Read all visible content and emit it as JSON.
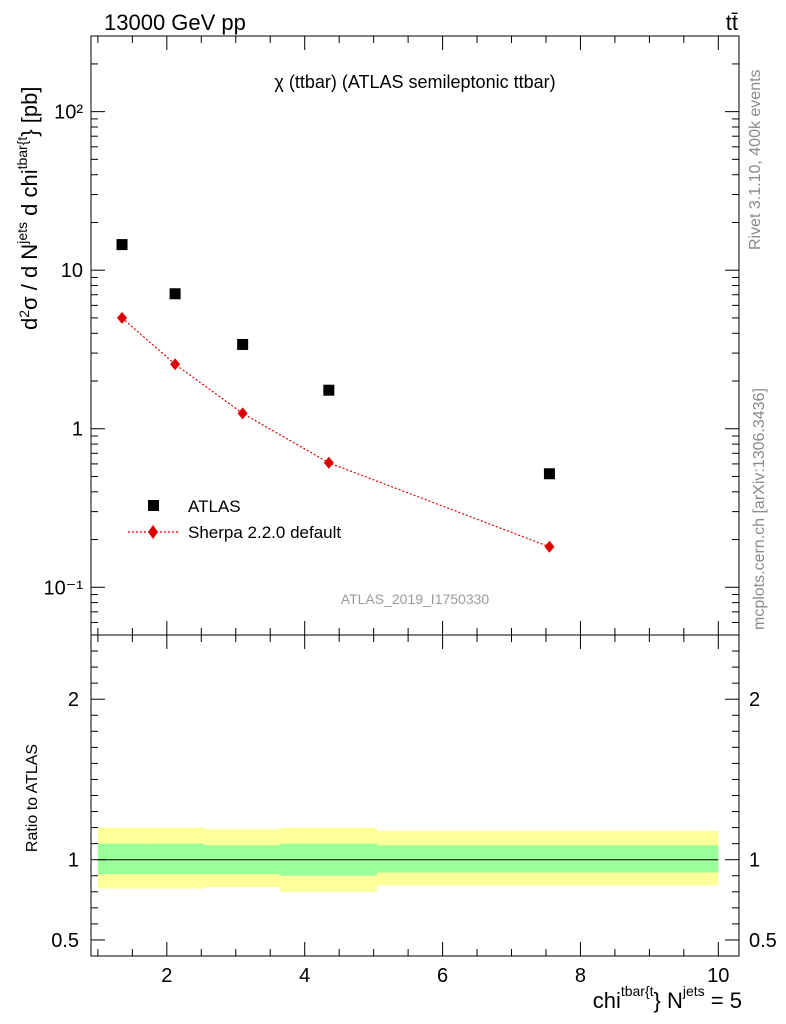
{
  "header": {
    "left": "13000 GeV pp",
    "right": "tt̄"
  },
  "side_labels": {
    "rivet": "Rivet 3.1.10,  400k events",
    "mcplots": "mcplots.cern.ch [arXiv:1306.3436]"
  },
  "chart_data": [
    {
      "type": "scatter",
      "title": "χ (ttbar) (ATLAS semileptonic ttbar)",
      "ylabel": "d²σ / d N^jets d chi^tbar{t} [pb]",
      "xlabel": "",
      "analysis_tag": "ATLAS_2019_I1750330",
      "y_scale": "log",
      "xlim": [
        0.9,
        10.3
      ],
      "ylim": [
        0.05,
        300
      ],
      "y_ticks": [
        {
          "value": 0.1,
          "label": "10⁻¹"
        },
        {
          "value": 1,
          "label": "1"
        },
        {
          "value": 10,
          "label": "10"
        },
        {
          "value": 100,
          "label": "10²"
        }
      ],
      "legend_position": "bottom-left",
      "series": [
        {
          "name": "ATLAS",
          "marker": "square",
          "color": "#000000",
          "x": [
            1.35,
            2.12,
            3.1,
            4.35,
            7.55
          ],
          "y": [
            14.5,
            7.1,
            3.4,
            1.75,
            0.52
          ]
        },
        {
          "name": "Sherpa 2.2.0 default",
          "marker": "diamond",
          "line": "dotted",
          "color": "#dd0000",
          "x": [
            1.35,
            2.12,
            3.1,
            4.35,
            7.55
          ],
          "y": [
            5.0,
            2.55,
            1.25,
            0.61,
            0.18
          ]
        }
      ]
    },
    {
      "type": "area",
      "ylabel": "Ratio to ATLAS",
      "xlabel": "chi^tbar{t} N^jets = 5",
      "xlim": [
        0.9,
        10.3
      ],
      "ylim": [
        0.4,
        2.4
      ],
      "y_ticks": [
        {
          "value": 0.5,
          "label": "0.5"
        },
        {
          "value": 1,
          "label": "1"
        },
        {
          "value": 2,
          "label": "2"
        }
      ],
      "x_ticks": [
        {
          "value": 2,
          "label": "2"
        },
        {
          "value": 4,
          "label": "4"
        },
        {
          "value": 6,
          "label": "6"
        },
        {
          "value": 8,
          "label": "8"
        },
        {
          "value": 10,
          "label": "10"
        }
      ],
      "reference_line": 1.0,
      "bins": [
        {
          "xlo": 1.0,
          "xhi": 1.75,
          "stat_lo": 0.91,
          "stat_hi": 1.1,
          "tot_lo": 0.82,
          "tot_hi": 1.2
        },
        {
          "xlo": 1.75,
          "xhi": 2.55,
          "stat_lo": 0.91,
          "stat_hi": 1.1,
          "tot_lo": 0.82,
          "tot_hi": 1.2
        },
        {
          "xlo": 2.55,
          "xhi": 3.65,
          "stat_lo": 0.91,
          "stat_hi": 1.09,
          "tot_lo": 0.83,
          "tot_hi": 1.19
        },
        {
          "xlo": 3.65,
          "xhi": 5.05,
          "stat_lo": 0.9,
          "stat_hi": 1.1,
          "tot_lo": 0.8,
          "tot_hi": 1.2
        },
        {
          "xlo": 5.05,
          "xhi": 10.0,
          "stat_lo": 0.92,
          "stat_hi": 1.09,
          "tot_lo": 0.84,
          "tot_hi": 1.18
        }
      ],
      "band_colors": {
        "stat": "#99ff99",
        "total": "#ffff99"
      }
    }
  ]
}
